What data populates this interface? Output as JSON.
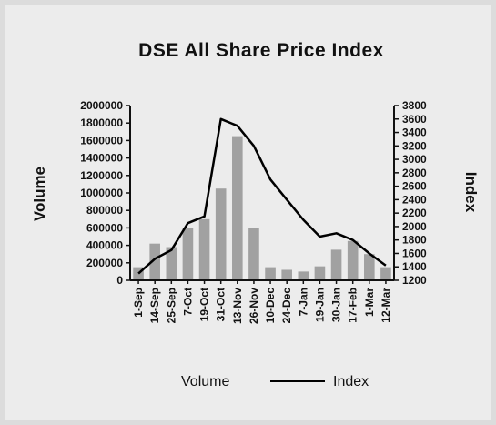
{
  "chart_data": {
    "type": "bar+line",
    "title": "DSE All Share Price Index",
    "ylabel_left": "Volume",
    "ylabel_right": "Index",
    "ylim_left": [
      0,
      2000000
    ],
    "ylim_right": [
      1200,
      3800
    ],
    "yticks_left": [
      "2000000",
      "1800000",
      "1600000",
      "1400000",
      "1200000",
      "1000000",
      "800000",
      "600000",
      "400000",
      "200000",
      "0"
    ],
    "yticks_right": [
      "3800",
      "3600",
      "3400",
      "3200",
      "3000",
      "2800",
      "2600",
      "2400",
      "2200",
      "2000",
      "1800",
      "1600",
      "1400",
      "1200"
    ],
    "categories": [
      "1-Sep",
      "14-Sep",
      "25-Sep",
      "7-Oct",
      "19-Oct",
      "31-Oct",
      "13-Nov",
      "26-Nov",
      "10-Dec",
      "24-Dec",
      "7-Jan",
      "19-Jan",
      "30-Jan",
      "17-Feb",
      "1-Mar",
      "12-Mar"
    ],
    "series": [
      {
        "name": "Volume",
        "type": "bar",
        "values": [
          150000,
          420000,
          380000,
          600000,
          700000,
          1050000,
          1650000,
          600000,
          150000,
          120000,
          100000,
          160000,
          350000,
          450000,
          300000,
          150000
        ]
      },
      {
        "name": "Index",
        "type": "line",
        "values": [
          1300,
          1520,
          1650,
          2050,
          2150,
          3600,
          3500,
          3200,
          2700,
          2400,
          2100,
          1850,
          1900,
          1800,
          1600,
          1420
        ]
      }
    ],
    "legend": [
      "Volume",
      "Index"
    ],
    "legend_position": "bottom",
    "colors": {
      "bars": "#6f6f6f",
      "line": "#000000",
      "background": "#ececec"
    }
  }
}
